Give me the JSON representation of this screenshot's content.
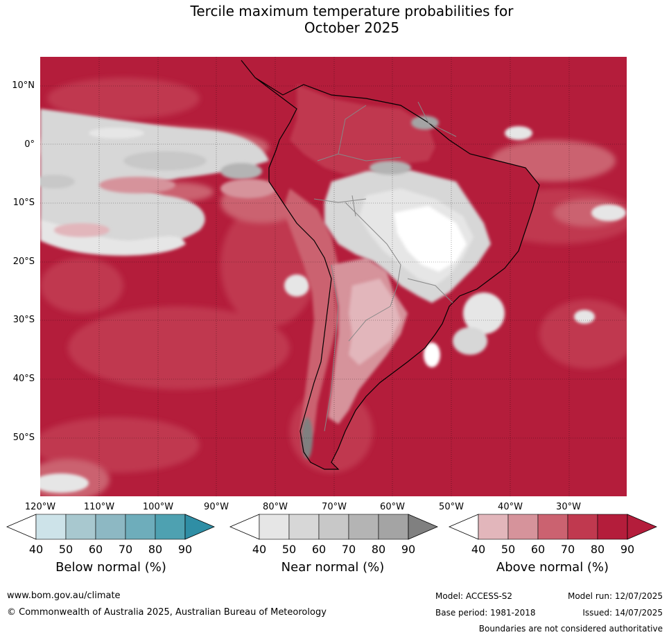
{
  "title": {
    "line1": "Tercile maximum temperature probabilities for",
    "line2": "October 2025"
  },
  "map": {
    "region": "South America",
    "lat_labels": [
      "10°N",
      "0°",
      "10°S",
      "20°S",
      "30°S",
      "40°S",
      "50°S"
    ],
    "lon_labels": [
      "120°W",
      "110°W",
      "100°W",
      "90°W",
      "80°W",
      "70°W",
      "60°W",
      "50°W",
      "40°W",
      "30°W"
    ],
    "colors": {
      "above_90": "#b41d3b",
      "above_80": "#c0394f",
      "above_70": "#cb6270",
      "above_60": "#d6939b",
      "above_50": "#e2b6bb",
      "near_40": "#e6e6e6",
      "near_50": "#d7d7d7",
      "near_60": "#c8c8c8",
      "near_70": "#b4b4b4",
      "near_80": "#a4a4a4",
      "near_90": "#808080",
      "blank": "#ffffff",
      "coast": "#000000",
      "borders": "#888888"
    }
  },
  "colorbars": [
    {
      "label": "Below normal (%)",
      "ticks": [
        "40",
        "50",
        "60",
        "70",
        "80",
        "90"
      ],
      "colors": [
        "#ffffff",
        "#cde3e9",
        "#a8c8cf",
        "#8db8c3",
        "#6eadbb",
        "#4ea1b1",
        "#2f8ea5"
      ]
    },
    {
      "label": "Near normal (%)",
      "ticks": [
        "40",
        "50",
        "60",
        "70",
        "80",
        "90"
      ],
      "colors": [
        "#ffffff",
        "#e6e6e6",
        "#d7d7d7",
        "#c8c8c8",
        "#b4b4b4",
        "#a4a4a4",
        "#808080"
      ]
    },
    {
      "label": "Above normal (%)",
      "ticks": [
        "40",
        "50",
        "60",
        "70",
        "80",
        "90"
      ],
      "colors": [
        "#ffffff",
        "#e2b6bb",
        "#d6939b",
        "#cb6270",
        "#c0394f",
        "#b41d3b",
        "#b41d3b"
      ]
    }
  ],
  "footer": {
    "url": "www.bom.gov.au/climate",
    "copyright": "© Commonwealth of Australia 2025, Australian Bureau of Meteorology",
    "model": "Model: ACCESS-S2",
    "model_run": "Model run: 12/07/2025",
    "base_period": "Base period: 1981-2018",
    "issued": "Issued: 14/07/2025",
    "disclaimer": "Boundaries are not considered authoritative"
  }
}
